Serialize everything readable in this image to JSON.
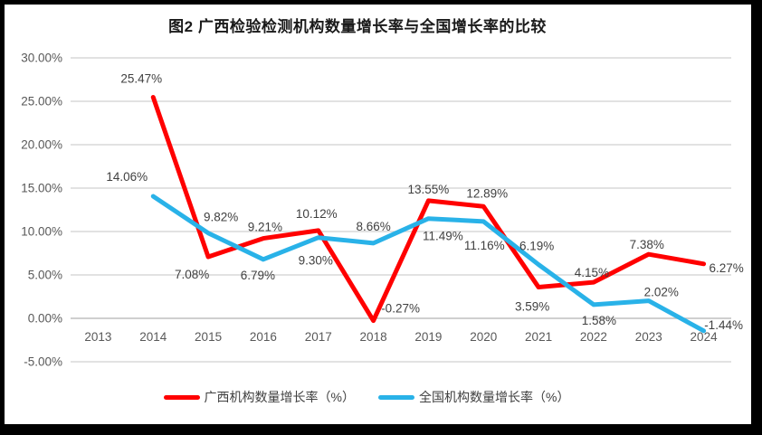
{
  "chart_data": {
    "type": "line",
    "title": "图2 广西检验检测机构数量增长率与全国增长率的比较",
    "categories": [
      "2013",
      "2014",
      "2015",
      "2016",
      "2017",
      "2018",
      "2019",
      "2020",
      "2021",
      "2022",
      "2023",
      "2024"
    ],
    "y_ticks": [
      "30.00%",
      "25.00%",
      "20.00%",
      "15.00%",
      "10.00%",
      "5.00%",
      "0.00%",
      "-5.00%"
    ],
    "ylim": [
      -5,
      30
    ],
    "grid": true,
    "legend_position": "bottom",
    "series": [
      {
        "id": "guangxi",
        "name": "广西机构数量增长率（%）",
        "color": "#FF0000",
        "values": [
          null,
          25.47,
          7.08,
          9.21,
          10.12,
          -0.27,
          13.55,
          12.89,
          3.59,
          4.15,
          7.38,
          6.27
        ],
        "labels": [
          null,
          "25.47%",
          "7.08%",
          "9.21%",
          "10.12%",
          "-0.27%",
          "13.55%",
          "12.89%",
          "3.59%",
          "4.15%",
          "7.38%",
          "6.27%"
        ],
        "label_offsets": [
          [
            0,
            0
          ],
          [
            -13,
            -16
          ],
          [
            -18,
            24
          ],
          [
            2,
            -8
          ],
          [
            -2,
            -14
          ],
          [
            30,
            -9
          ],
          [
            0,
            -8
          ],
          [
            4,
            -10
          ],
          [
            -7,
            26
          ],
          [
            -2,
            -6
          ],
          [
            -2,
            -6
          ],
          [
            25,
            9
          ]
        ]
      },
      {
        "id": "national",
        "name": "全国机构数量增长率（%）",
        "color": "#29B2E8",
        "values": [
          null,
          14.06,
          9.82,
          6.79,
          9.3,
          8.66,
          11.49,
          11.16,
          6.19,
          1.58,
          2.02,
          -1.44
        ],
        "labels": [
          null,
          "14.06%",
          "9.82%",
          "6.79%",
          "9.30%",
          "8.66%",
          "11.49%",
          "11.16%",
          "6.19%",
          "1.58%",
          "2.02%",
          "-1.44%"
        ],
        "label_offsets": [
          [
            0,
            0
          ],
          [
            -29,
            -17
          ],
          [
            14,
            -13
          ],
          [
            -6,
            22
          ],
          [
            -3,
            30
          ],
          [
            0,
            -14
          ],
          [
            16,
            24
          ],
          [
            1,
            31
          ],
          [
            -2,
            -16
          ],
          [
            6,
            22
          ],
          [
            14,
            -5
          ],
          [
            22,
            -2
          ]
        ]
      }
    ],
    "colors": {
      "gridline": "#D9D9D9",
      "axis_line": "#BFBFBF",
      "tick_label": "#595959",
      "data_label": "#404040",
      "title": "#1a1a1a",
      "frame": "#000000",
      "background": "#FFFFFF"
    }
  }
}
